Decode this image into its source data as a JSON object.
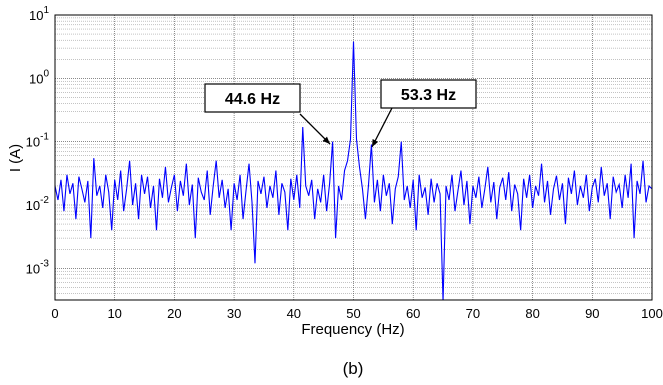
{
  "chart_data": {
    "type": "line",
    "xlabel": "Frequency (Hz)",
    "ylabel": "I (A)",
    "caption": "(b)",
    "log_y": true,
    "grid": true,
    "color": "#0000ff",
    "xlim": [
      0,
      100
    ],
    "xticks": [
      0,
      10,
      20,
      30,
      40,
      50,
      60,
      70,
      80,
      90,
      100
    ],
    "ylim": [
      0.0003162,
      10
    ],
    "yticks": [
      {
        "value": 10,
        "label": "10^1"
      },
      {
        "value": 1,
        "label": "10^0"
      },
      {
        "value": 0.1,
        "label": "10^-1"
      },
      {
        "value": 0.01,
        "label": "10^-2"
      },
      {
        "value": 0.001,
        "label": "10^-3"
      }
    ],
    "annotations": [
      {
        "text": "44.6 Hz"
      },
      {
        "text": "53.3 Hz"
      }
    ],
    "x": [
      0,
      0.5,
      1,
      1.5,
      2,
      2.5,
      3,
      3.5,
      4,
      4.5,
      5,
      5.5,
      6,
      6.5,
      7,
      7.5,
      8,
      8.5,
      9,
      9.5,
      10,
      10.5,
      11,
      11.5,
      12,
      12.5,
      13,
      13.5,
      14,
      14.5,
      15,
      15.5,
      16,
      16.5,
      17,
      17.5,
      18,
      18.5,
      19,
      19.5,
      20,
      20.5,
      21,
      21.5,
      22,
      22.5,
      23,
      23.5,
      24,
      24.5,
      25,
      25.5,
      26,
      26.5,
      27,
      27.5,
      28,
      28.5,
      29,
      29.5,
      30,
      30.5,
      31,
      31.5,
      32,
      32.5,
      33,
      33.5,
      34,
      34.5,
      35,
      35.5,
      36,
      36.5,
      37,
      37.5,
      38,
      38.5,
      39,
      39.5,
      40,
      40.5,
      41,
      41.5,
      42,
      42.5,
      43,
      43.5,
      44,
      44.5,
      45,
      45.5,
      46,
      46.5,
      47,
      47.5,
      48,
      48.5,
      49,
      49.5,
      50,
      50.5,
      51,
      51.5,
      52,
      52.5,
      53,
      53.5,
      54,
      54.5,
      55,
      55.5,
      56,
      56.5,
      57,
      57.5,
      58,
      58.5,
      59,
      59.5,
      60,
      60.5,
      61,
      61.5,
      62,
      62.5,
      63,
      63.5,
      64,
      64.5,
      65,
      65.5,
      66,
      66.5,
      67,
      67.5,
      68,
      68.5,
      69,
      69.5,
      70,
      70.5,
      71,
      71.5,
      72,
      72.5,
      73,
      73.5,
      74,
      74.5,
      75,
      75.5,
      76,
      76.5,
      77,
      77.5,
      78,
      78.5,
      79,
      79.5,
      80,
      80.5,
      81,
      81.5,
      82,
      82.5,
      83,
      83.5,
      84,
      84.5,
      85,
      85.5,
      86,
      86.5,
      87,
      87.5,
      88,
      88.5,
      89,
      89.5,
      90,
      90.5,
      91,
      91.5,
      92,
      92.5,
      93,
      93.5,
      94,
      94.5,
      95,
      95.5,
      96,
      96.5,
      97,
      97.5,
      98,
      98.5,
      99,
      99.5,
      100
    ],
    "values": [
      0.02,
      0.012,
      0.025,
      0.008,
      0.03,
      0.015,
      0.022,
      0.006,
      0.028,
      0.018,
      0.011,
      0.024,
      0.003,
      0.055,
      0.014,
      0.02,
      0.009,
      0.03,
      0.016,
      0.004,
      0.025,
      0.012,
      0.035,
      0.008,
      0.018,
      0.05,
      0.01,
      0.022,
      0.006,
      0.03,
      0.015,
      0.028,
      0.009,
      0.02,
      0.004,
      0.026,
      0.013,
      0.04,
      0.011,
      0.019,
      0.03,
      0.008,
      0.024,
      0.014,
      0.045,
      0.01,
      0.021,
      0.003,
      0.027,
      0.016,
      0.012,
      0.035,
      0.007,
      0.02,
      0.05,
      0.013,
      0.025,
      0.009,
      0.018,
      0.004,
      0.022,
      0.012,
      0.03,
      0.006,
      0.017,
      0.045,
      0.011,
      0.0012,
      0.024,
      0.015,
      0.028,
      0.009,
      0.02,
      0.013,
      0.035,
      0.007,
      0.022,
      0.016,
      0.004,
      0.026,
      0.012,
      0.03,
      0.009,
      0.17,
      0.02,
      0.014,
      0.025,
      0.006,
      0.018,
      0.011,
      0.03,
      0.008,
      0.022,
      0.1,
      0.003,
      0.02,
      0.012,
      0.035,
      0.05,
      0.11,
      3.8,
      0.11,
      0.04,
      0.018,
      0.006,
      0.02,
      0.09,
      0.011,
      0.025,
      0.008,
      0.03,
      0.014,
      0.022,
      0.005,
      0.018,
      0.028,
      0.1,
      0.012,
      0.02,
      0.009,
      0.025,
      0.004,
      0.03,
      0.013,
      0.019,
      0.007,
      0.026,
      0.011,
      0.022,
      0.015,
      0.0003,
      0.02,
      0.012,
      0.03,
      0.008,
      0.017,
      0.035,
      0.01,
      0.024,
      0.005,
      0.02,
      0.013,
      0.028,
      0.009,
      0.018,
      0.04,
      0.011,
      0.023,
      0.006,
      0.019,
      0.027,
      0.012,
      0.033,
      0.008,
      0.021,
      0.015,
      0.004,
      0.026,
      0.013,
      0.03,
      0.009,
      0.02,
      0.014,
      0.045,
      0.011,
      0.024,
      0.007,
      0.018,
      0.029,
      0.012,
      0.022,
      0.005,
      0.027,
      0.015,
      0.035,
      0.01,
      0.02,
      0.013,
      0.03,
      0.008,
      0.019,
      0.026,
      0.011,
      0.04,
      0.014,
      0.022,
      0.006,
      0.028,
      0.016,
      0.021,
      0.009,
      0.03,
      0.013,
      0.045,
      0.003,
      0.024,
      0.015,
      0.05,
      0.011,
      0.02,
      0.018
    ]
  }
}
